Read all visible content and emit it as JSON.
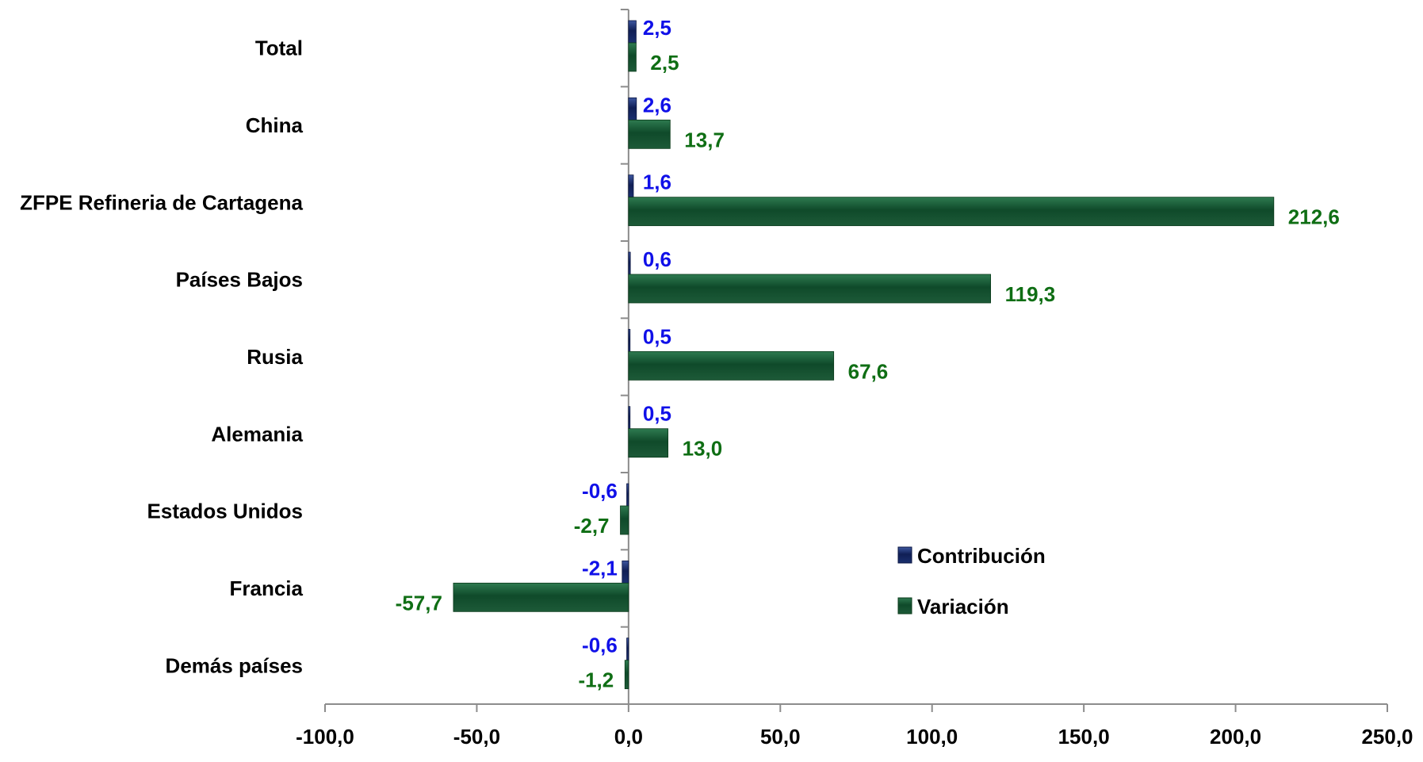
{
  "chart_data": {
    "type": "bar",
    "orientation": "horizontal",
    "title": "",
    "xlabel": "",
    "ylabel": "",
    "categories": [
      "Total",
      "China",
      "ZFPE Refineria de Cartagena",
      "Países Bajos",
      "Rusia",
      "Alemania",
      "Estados Unidos",
      "Francia",
      "Demás países"
    ],
    "series": [
      {
        "name": "Contribución",
        "color": "#1a2f6e",
        "label_color": "#1010e8",
        "values": [
          2.5,
          2.6,
          1.6,
          0.6,
          0.5,
          0.5,
          -0.6,
          -2.1,
          -0.6
        ],
        "labels": [
          "2,5",
          "2,6",
          "1,6",
          "0,6",
          "0,5",
          "0,5",
          "-0,6",
          "-2,1",
          "-0,6"
        ]
      },
      {
        "name": "Variación",
        "color": "#1d5a38",
        "label_color": "#0f6e14",
        "values": [
          2.5,
          13.7,
          212.6,
          119.3,
          67.6,
          13.0,
          -2.7,
          -57.7,
          -1.2
        ],
        "labels": [
          "2,5",
          "13,7",
          "212,6",
          "119,3",
          "67,6",
          "13,0",
          "-2,7",
          "-57,7",
          "-1,2"
        ]
      }
    ],
    "xlim": [
      -100,
      250
    ],
    "xticks": [
      -100,
      -50,
      0,
      50,
      100,
      150,
      200,
      250
    ],
    "xtick_labels": [
      "-100,0",
      "-50,0",
      "0,0",
      "50,0",
      "100,0",
      "150,0",
      "200,0",
      "250,0"
    ],
    "grid": false,
    "legend_position": "right"
  }
}
